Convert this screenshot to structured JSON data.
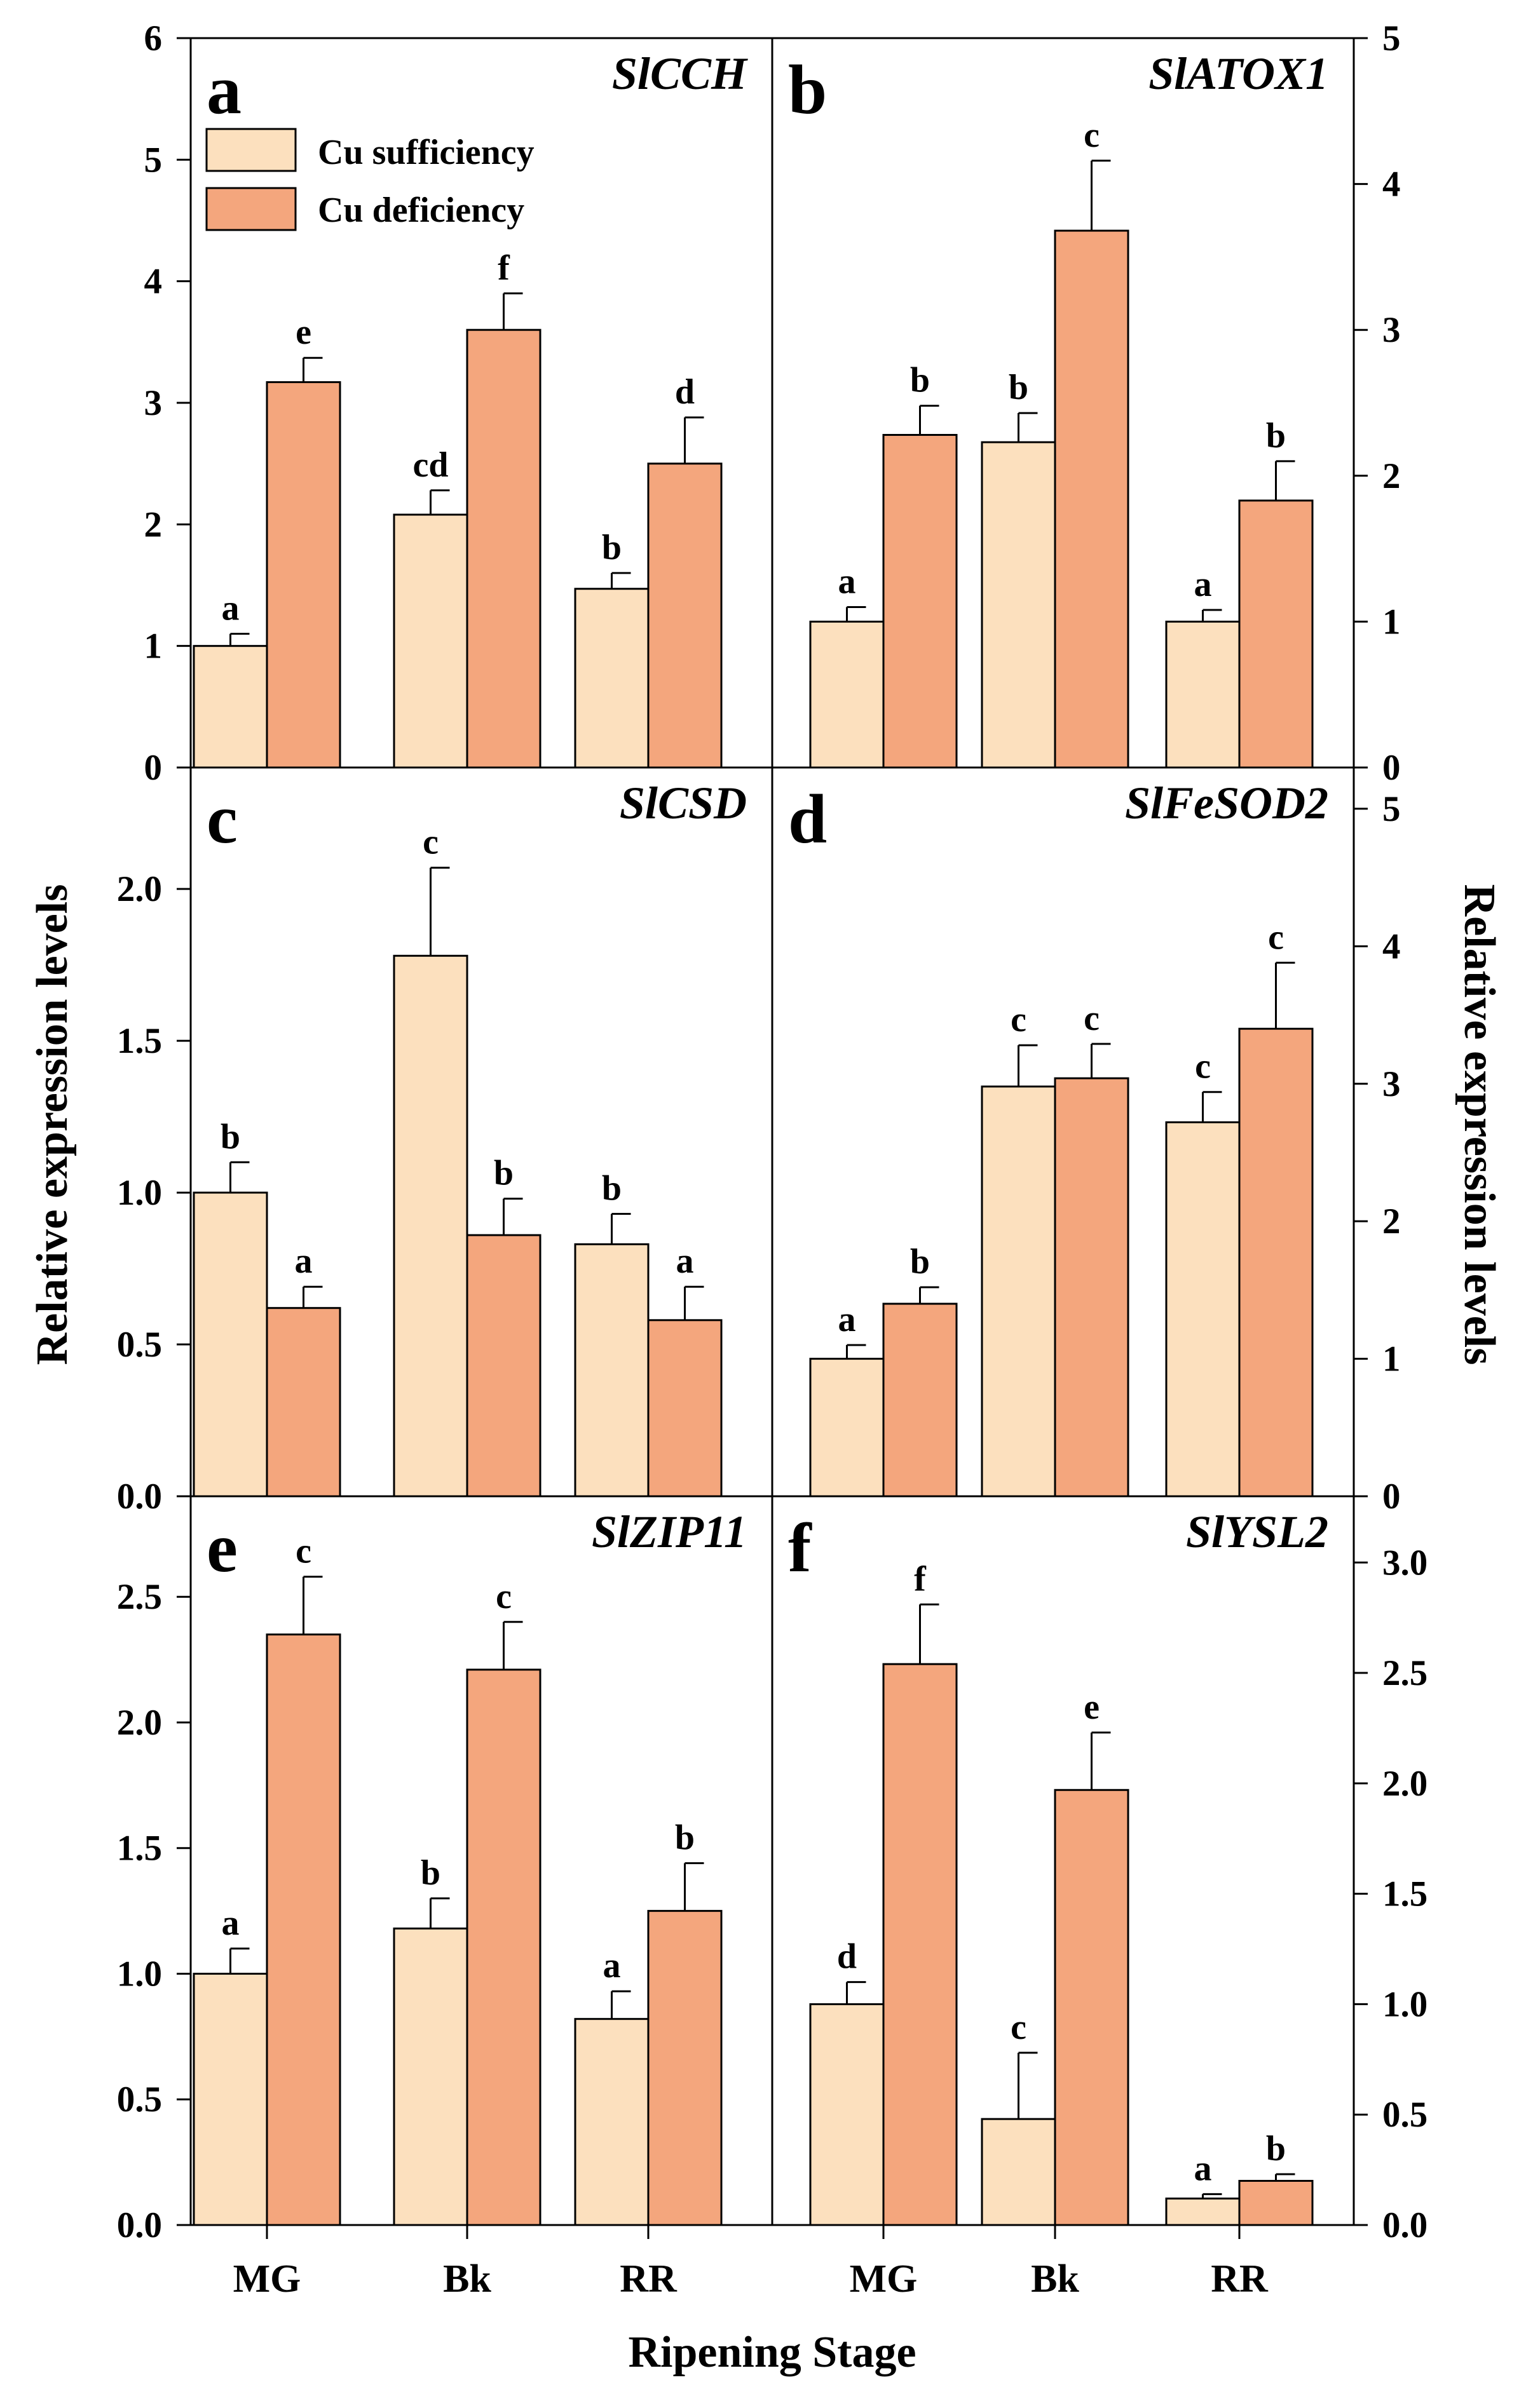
{
  "figure": {
    "xlabel": "Ripening Stage",
    "ylabel_left": "Relative expression levels",
    "ylabel_right": "Relative expression levels",
    "legend": {
      "placement": "top-left of panel a",
      "items": [
        {
          "label": "Cu sufficiency",
          "color": "#FCE0BE"
        },
        {
          "label": "Cu deficiency",
          "color": "#F4A67D"
        }
      ]
    },
    "colors": {
      "suff": "#FCE0BE",
      "def": "#F4A67D",
      "axis": "#000000"
    }
  },
  "chart_data": [
    {
      "type": "bar",
      "panel": "a",
      "gene": "SlCCH",
      "axis_side": "left",
      "categories": [
        "MG",
        "Bk",
        "RR"
      ],
      "ylim": [
        0,
        6
      ],
      "yticks": [
        0,
        1,
        2,
        3,
        4,
        5,
        6
      ],
      "ytick_labels": [
        "0",
        "1",
        "2",
        "3",
        "4",
        "5",
        "6"
      ],
      "series": [
        {
          "name": "Cu sufficiency",
          "values": [
            1.0,
            2.08,
            1.47
          ],
          "errors": [
            0.1,
            0.2,
            0.13
          ],
          "letters": [
            "a",
            "cd",
            "b"
          ]
        },
        {
          "name": "Cu deficiency",
          "values": [
            3.17,
            3.6,
            2.5
          ],
          "errors": [
            0.2,
            0.3,
            0.38
          ],
          "letters": [
            "e",
            "f",
            "d"
          ]
        }
      ]
    },
    {
      "type": "bar",
      "panel": "b",
      "gene": "SlATOX1",
      "axis_side": "right",
      "categories": [
        "MG",
        "Bk",
        "RR"
      ],
      "ylim": [
        0,
        5
      ],
      "yticks": [
        0,
        1,
        2,
        3,
        4,
        5
      ],
      "ytick_labels": [
        "0",
        "1",
        "2",
        "3",
        "4",
        "5"
      ],
      "series": [
        {
          "name": "Cu sufficiency",
          "values": [
            1.0,
            2.23,
            1.0
          ],
          "errors": [
            0.1,
            0.2,
            0.08
          ],
          "letters": [
            "a",
            "b",
            "a"
          ]
        },
        {
          "name": "Cu deficiency",
          "values": [
            2.28,
            3.68,
            1.83
          ],
          "errors": [
            0.2,
            0.48,
            0.27
          ],
          "letters": [
            "b",
            "c",
            "b"
          ]
        }
      ]
    },
    {
      "type": "bar",
      "panel": "c",
      "gene": "SlCSD",
      "axis_side": "left",
      "categories": [
        "MG",
        "Bk",
        "RR"
      ],
      "ylim": [
        0,
        2.4
      ],
      "yticks": [
        0,
        0.5,
        1.0,
        1.5,
        2.0
      ],
      "ytick_labels": [
        "0.0",
        "0.5",
        "1.0",
        "1.5",
        "2.0"
      ],
      "series": [
        {
          "name": "Cu sufficiency",
          "values": [
            1.0,
            1.78,
            0.83
          ],
          "errors": [
            0.1,
            0.29,
            0.1
          ],
          "letters": [
            "b",
            "c",
            "b"
          ]
        },
        {
          "name": "Cu deficiency",
          "values": [
            0.62,
            0.86,
            0.58
          ],
          "errors": [
            0.07,
            0.12,
            0.11
          ],
          "letters": [
            "a",
            "b",
            "a"
          ]
        }
      ]
    },
    {
      "type": "bar",
      "panel": "d",
      "gene": "SlFeSOD2",
      "axis_side": "right",
      "categories": [
        "MG",
        "Bk",
        "RR"
      ],
      "ylim": [
        0,
        5.3
      ],
      "yticks": [
        0,
        1,
        2,
        3,
        4,
        5
      ],
      "ytick_labels": [
        "0",
        "1",
        "2",
        "3",
        "4",
        "5"
      ],
      "series": [
        {
          "name": "Cu sufficiency",
          "values": [
            1.0,
            2.98,
            2.72
          ],
          "errors": [
            0.1,
            0.3,
            0.22
          ],
          "letters": [
            "a",
            "c",
            "c"
          ]
        },
        {
          "name": "Cu deficiency",
          "values": [
            1.4,
            3.04,
            3.4
          ],
          "errors": [
            0.12,
            0.25,
            0.48
          ],
          "letters": [
            "b",
            "c",
            "c"
          ]
        }
      ]
    },
    {
      "type": "bar",
      "panel": "e",
      "gene": "SlZIP11",
      "axis_side": "left",
      "categories": [
        "MG",
        "Bk",
        "RR"
      ],
      "ylim": [
        0,
        2.9
      ],
      "yticks": [
        0,
        0.5,
        1.0,
        1.5,
        2.0,
        2.5
      ],
      "ytick_labels": [
        "0.0",
        "0.5",
        "1.0",
        "1.5",
        "2.0",
        "2.5"
      ],
      "series": [
        {
          "name": "Cu sufficiency",
          "values": [
            1.0,
            1.18,
            0.82
          ],
          "errors": [
            0.1,
            0.12,
            0.11
          ],
          "letters": [
            "a",
            "b",
            "a"
          ]
        },
        {
          "name": "Cu deficiency",
          "values": [
            2.35,
            2.21,
            1.25
          ],
          "errors": [
            0.23,
            0.19,
            0.19
          ],
          "letters": [
            "c",
            "c",
            "b"
          ]
        }
      ]
    },
    {
      "type": "bar",
      "panel": "f",
      "gene": "SlYSL2",
      "axis_side": "right",
      "categories": [
        "MG",
        "Bk",
        "RR"
      ],
      "ylim": [
        0,
        3.3
      ],
      "yticks": [
        0,
        0.5,
        1.0,
        1.5,
        2.0,
        2.5,
        3.0
      ],
      "ytick_labels": [
        "0.0",
        "0.5",
        "1.0",
        "1.5",
        "2.0",
        "2.5",
        "3.0"
      ],
      "series": [
        {
          "name": "Cu sufficiency",
          "values": [
            1.0,
            0.48,
            0.12
          ],
          "errors": [
            0.1,
            0.3,
            0.02
          ],
          "letters": [
            "d",
            "c",
            "a"
          ]
        },
        {
          "name": "Cu deficiency",
          "values": [
            2.54,
            1.97,
            0.2
          ],
          "errors": [
            0.27,
            0.26,
            0.03
          ],
          "letters": [
            "f",
            "e",
            "b"
          ]
        }
      ]
    }
  ]
}
